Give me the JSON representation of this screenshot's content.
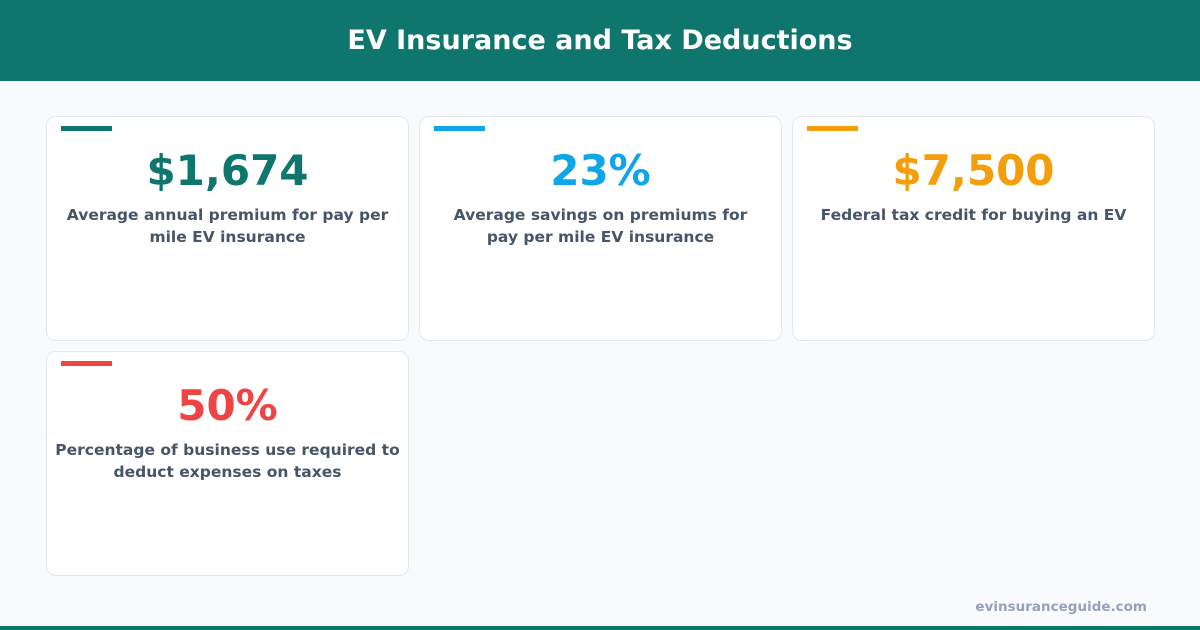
{
  "header": {
    "title": "EV Insurance and Tax Deductions"
  },
  "stats": [
    {
      "value": "$1,674",
      "label": "Average annual premium for pay per mile EV insurance",
      "color": "#0f766e"
    },
    {
      "value": "23%",
      "label": "Average savings on premiums for pay per mile EV insurance",
      "color": "#0ea5e9"
    },
    {
      "value": "$7,500",
      "label": "Federal tax credit for buying an EV",
      "color": "#f59e0b"
    },
    {
      "value": "50%",
      "label": "Percentage of business use required to deduct expenses on taxes",
      "color": "#ef4444"
    }
  ],
  "footer": {
    "site": "evinsuranceguide.com"
  }
}
